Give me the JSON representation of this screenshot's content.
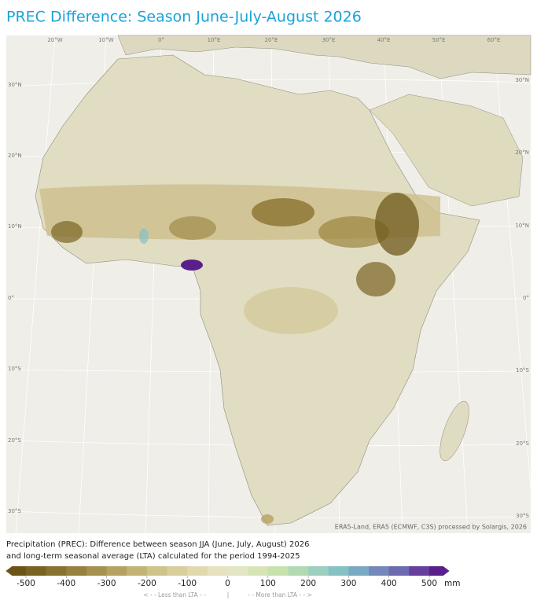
{
  "header": {
    "title": "PREC Difference: Season June-July-August 2026"
  },
  "map": {
    "top_labels": [
      "20°W",
      "10°W",
      "0°",
      "10°E",
      "20°E",
      "30°E",
      "40°E",
      "50°E",
      "60°E"
    ],
    "left_labels": [
      "30°N",
      "20°N",
      "10°N",
      "0°",
      "10°S",
      "20°S",
      "30°S"
    ],
    "right_labels": [
      "30°N",
      "20°N",
      "10°N",
      "0°",
      "10°S",
      "20°S",
      "30°S"
    ],
    "attribution": "ERA5-Land, ERA5 (ECMWF, C3S) processed by Solargis, 2026"
  },
  "caption": [
    "Precipitation (PREC): Difference between season JJA (June, July, August) 2026",
    "and long-term seasonal average (LTA) calculated for the period 1994-2025"
  ],
  "legend": {
    "ticks": [
      -500,
      -400,
      -300,
      -200,
      -100,
      0,
      100,
      200,
      300,
      400,
      500
    ],
    "unit": "mm",
    "colors": [
      "#6b5418",
      "#7a6222",
      "#89712f",
      "#98813e",
      "#a6914f",
      "#b5a262",
      "#c3b476",
      "#cec38a",
      "#d8cf9c",
      "#e0d9ae",
      "#e6e1be",
      "#e2e6c4",
      "#d7e5b6",
      "#c8e2ae",
      "#b2dab2",
      "#9ccfbf",
      "#86c1c6",
      "#7aa9c4",
      "#7488bb",
      "#6e6aaf",
      "#673f9d",
      "#5a1f8a"
    ],
    "less": "< - -  Less than LTA  - -",
    "separator": "|",
    "more": "- -  More than LTA  - - >"
  }
}
